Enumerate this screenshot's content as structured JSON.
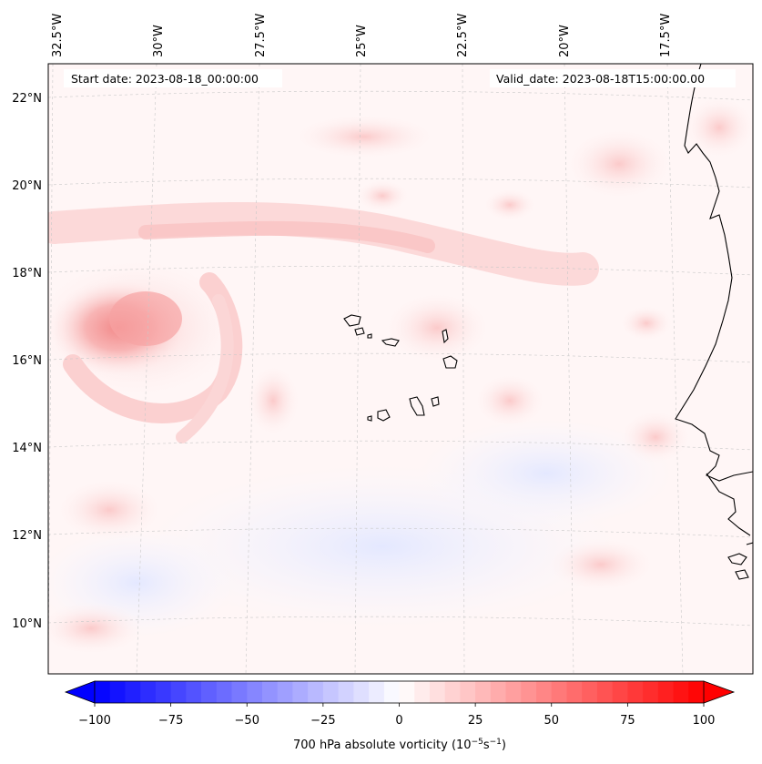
{
  "header": {
    "start_date": "Start date: 2023-08-18_00:00:00",
    "valid_date": "Valid_date: 2023-08-18T15:00:00.00"
  },
  "longitude_labels": [
    "32.5°W",
    "30°W",
    "27.5°W",
    "25°W",
    "22.5°W",
    "20°W",
    "17.5°W"
  ],
  "latitude_labels": [
    "22°N",
    "20°N",
    "18°N",
    "16°N",
    "14°N",
    "12°N",
    "10°N"
  ],
  "colorbar": {
    "ticks": [
      "−100",
      "−75",
      "−50",
      "−25",
      "0",
      "25",
      "50",
      "75",
      "100"
    ],
    "min": -100,
    "max": 100,
    "label_main": "700 hPa absolute vorticity (10",
    "label_exp1": "−5",
    "label_mid": "s",
    "label_exp2": "−1",
    "label_end": ")",
    "colormap": "bwr",
    "low_color": "#0000ff",
    "mid_color": "#ffffff",
    "high_color": "#ff0000"
  },
  "map": {
    "background_color": "#fff6f6",
    "coastline_color": "#000000",
    "gridline_color": "#cccccc"
  }
}
